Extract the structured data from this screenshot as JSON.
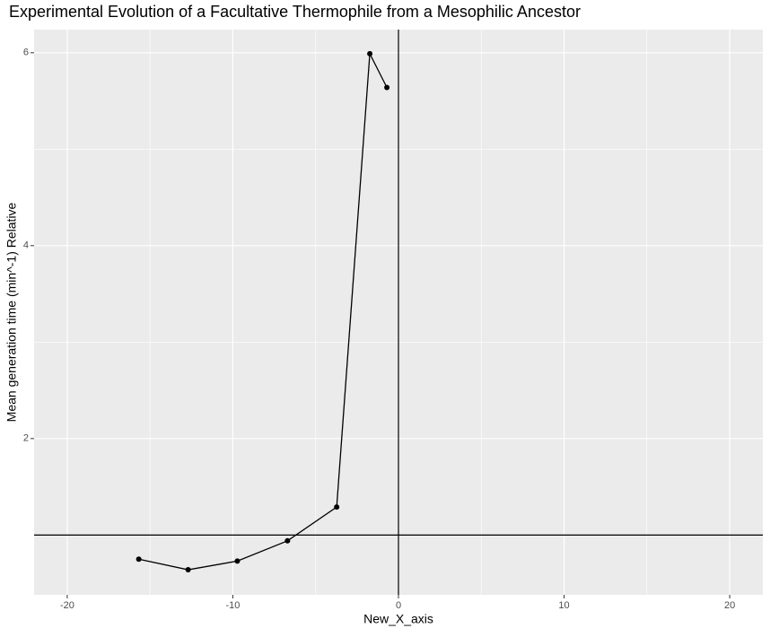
{
  "chart_data": {
    "type": "line",
    "title": "Experimental Evolution of a Facultative Thermophile from a Mesophilic Ancestor",
    "x_label": "New_X_axis",
    "y_label": "Mean generation time (min^-1)   Relative",
    "x": [
      -15.68,
      -12.7,
      -9.73,
      -6.7,
      -3.73,
      -1.73,
      -0.7
    ],
    "series": [
      {
        "color": "#000000",
        "values": [
          0.75,
          0.64,
          0.73,
          0.94,
          1.29,
          5.99,
          5.64
        ]
      }
    ],
    "xlim": [
      -22,
      22
    ],
    "ylim": [
      0.38,
      6.24
    ],
    "xticks": [
      -20,
      -10,
      0,
      10,
      20
    ],
    "yticks": [
      2,
      4,
      6
    ],
    "x_minor_ticks": [
      -15,
      -5,
      5,
      15
    ],
    "y_minor_ticks": [
      1,
      3,
      5
    ],
    "hline": 1,
    "vline": 0,
    "grid": true
  }
}
